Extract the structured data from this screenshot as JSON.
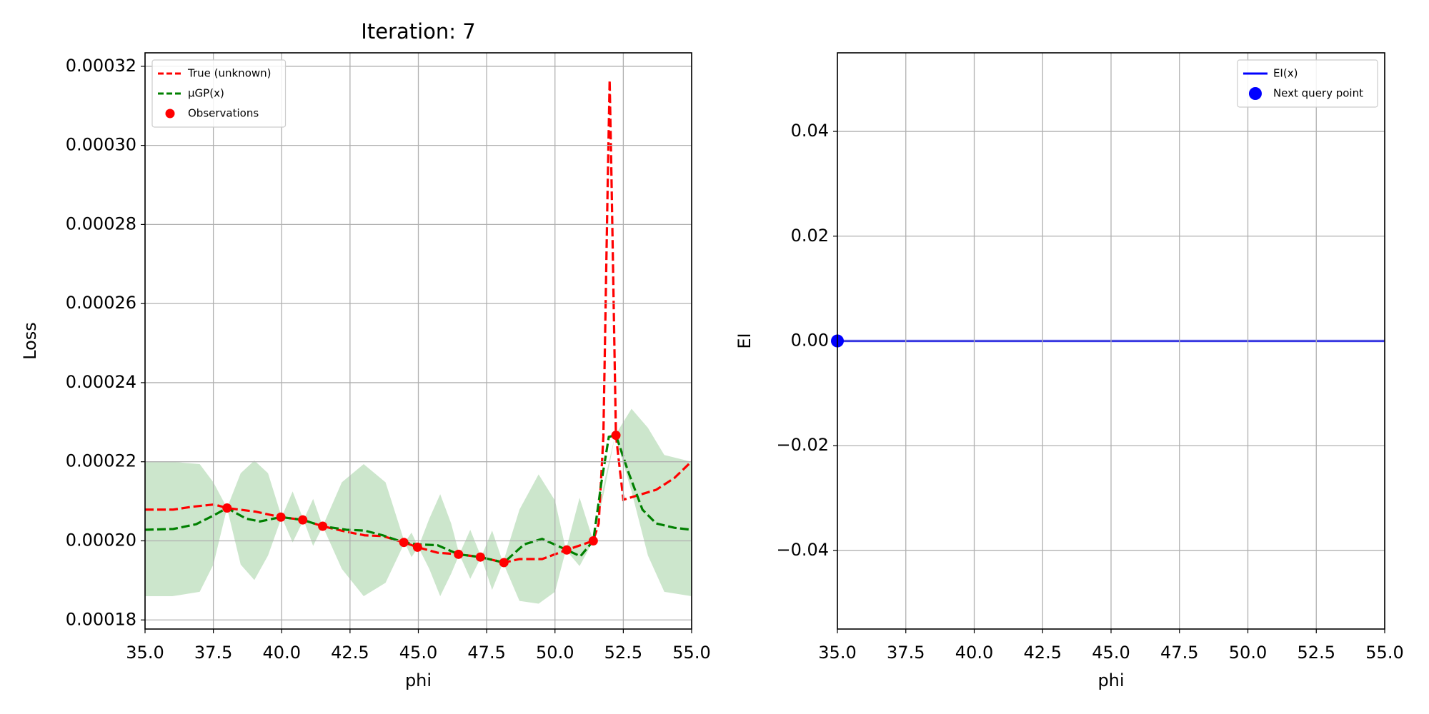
{
  "chart_data": [
    {
      "type": "line",
      "title": "Iteration: 7",
      "xlabel": "phi",
      "ylabel": "Loss",
      "xlim": [
        35,
        55
      ],
      "ylim": [
        0.0001777,
        0.0003234
      ],
      "xticks": [
        {
          "value": 35,
          "label": "35.0"
        },
        37.5,
        {
          "value": 40,
          "label": "40.0"
        },
        42.5,
        {
          "value": 45,
          "label": "45.0"
        },
        47.5,
        {
          "value": 50,
          "label": "50.0"
        },
        52.5,
        {
          "value": 55,
          "label": "55.0"
        }
      ],
      "yticks": [
        0.00018,
        {
          "value": 0.0002,
          "label": "0.00020"
        },
        0.00022,
        0.00024,
        0.00026,
        0.00028,
        {
          "value": 0.0003,
          "label": "0.00030"
        },
        0.00032
      ],
      "grid": true,
      "legend": "upper left",
      "band": {
        "color": "#008000",
        "x": [
          35,
          36,
          37,
          37.5,
          38,
          38.5,
          39,
          39.5,
          40,
          40.4,
          40.8,
          41.15,
          41.5,
          42.2,
          43,
          43.8,
          44.5,
          44.75,
          45,
          45.4,
          45.8,
          46.2,
          46.5,
          46.9,
          47.3,
          47.7,
          48.1,
          48.7,
          49.4,
          50,
          50.4,
          50.9,
          51.4,
          51.8,
          52.2,
          52.8,
          53.4,
          54,
          55
        ],
        "upper": [
          0.00022,
          0.00022,
          0.0002194,
          0.0002148,
          0.0002083,
          0.0002171,
          0.0002203,
          0.0002171,
          0.000206,
          0.0002125,
          0.0002053,
          0.0002106,
          0.0002037,
          0.0002148,
          0.0002194,
          0.0002148,
          0.0001996,
          0.0002021,
          0.0001984,
          0.0002056,
          0.0002118,
          0.0002044,
          0.0001966,
          0.0002028,
          0.0001959,
          0.0002026,
          0.0001945,
          0.0002079,
          0.0002168,
          0.0002102,
          0.0001977,
          0.0002109,
          0.0002,
          0.0002148,
          0.0002267,
          0.0002334,
          0.0002286,
          0.0002217,
          0.00022
        ],
        "lower": [
          0.000186,
          0.000186,
          0.0001871,
          0.000194,
          0.0002083,
          0.000194,
          0.0001901,
          0.0001963,
          0.000206,
          0.0001996,
          0.0002053,
          0.0001987,
          0.0002037,
          0.0001929,
          0.000186,
          0.0001894,
          0.0001996,
          0.0001959,
          0.0001984,
          0.0001929,
          0.000186,
          0.0001917,
          0.0001966,
          0.0001904,
          0.0001959,
          0.0001876,
          0.0001945,
          0.0001848,
          0.0001841,
          0.0001871,
          0.0001977,
          0.0001936,
          0.0002,
          0.0002125,
          0.0002267,
          0.0002125,
          0.0001963,
          0.0001871,
          0.000186
        ]
      },
      "series": [
        {
          "name": "True (unknown)",
          "color": "#ff0000",
          "style": "dashed",
          "x": [
            35,
            36.03,
            36.7,
            37.53,
            38,
            39.03,
            39.97,
            40.77,
            41.5,
            42.37,
            43.03,
            43.7,
            44.47,
            44.97,
            45.7,
            46.47,
            47.27,
            48.13,
            48.7,
            49.53,
            50.43,
            51.4,
            51.6,
            51.77,
            51.93,
            52,
            52.07,
            52.23,
            52.5,
            53.03,
            53.7,
            54.37,
            55
          ],
          "values": [
            0.0002079,
            0.0002079,
            0.0002086,
            0.0002092,
            0.0002083,
            0.0002074,
            0.000206,
            0.0002053,
            0.0002037,
            0.0002023,
            0.0002014,
            0.0002012,
            0.0001996,
            0.0001984,
            0.000197,
            0.0001966,
            0.0001959,
            0.0001945,
            0.0001954,
            0.0001954,
            0.0001977,
            0.0002,
            0.0002044,
            0.0002263,
            0.0002908,
            0.0003165,
            0.0002908,
            0.0002267,
            0.0002104,
            0.0002115,
            0.0002129,
            0.0002159,
            0.0002201
          ]
        },
        {
          "name": "μGP(x)",
          "color": "#008000",
          "style": "dashed",
          "x": [
            35,
            36.03,
            36.87,
            37.53,
            38,
            38.7,
            39.2,
            39.97,
            40.77,
            41.5,
            42.37,
            43.03,
            43.7,
            44.47,
            44.97,
            45.7,
            46.47,
            47.27,
            48.13,
            48.87,
            49.53,
            50.43,
            50.93,
            51.4,
            51.7,
            51.97,
            52.23,
            52.7,
            53.2,
            53.7,
            54.37,
            55
          ],
          "values": [
            0.0002028,
            0.000203,
            0.0002042,
            0.0002065,
            0.0002083,
            0.0002056,
            0.0002049,
            0.000206,
            0.0002053,
            0.0002037,
            0.0002028,
            0.0002026,
            0.0002014,
            0.0001996,
            0.0001991,
            0.0001989,
            0.0001966,
            0.0001959,
            0.0001945,
            0.0001991,
            0.0002005,
            0.0001977,
            0.0001961,
            0.0002,
            0.0002148,
            0.0002263,
            0.0002267,
            0.0002171,
            0.0002079,
            0.0002044,
            0.0002033,
            0.0002028
          ]
        },
        {
          "name": "Observations",
          "color": "#ff0000",
          "style": "markers",
          "x": [
            38,
            39.97,
            40.77,
            41.5,
            44.47,
            44.97,
            46.47,
            47.27,
            48.13,
            50.43,
            51.4,
            52.23
          ],
          "values": [
            0.0002083,
            0.000206,
            0.0002053,
            0.0002037,
            0.0001996,
            0.0001984,
            0.0001966,
            0.0001959,
            0.0001945,
            0.0001977,
            0.0002,
            0.0002267
          ]
        }
      ]
    },
    {
      "type": "line",
      "xlabel": "phi",
      "ylabel": "EI",
      "xlim": [
        35,
        55
      ],
      "ylim": [
        -0.055,
        0.055
      ],
      "xticks": [
        {
          "value": 35,
          "label": "35.0"
        },
        37.5,
        {
          "value": 40,
          "label": "40.0"
        },
        42.5,
        {
          "value": 45,
          "label": "45.0"
        },
        47.5,
        {
          "value": 50,
          "label": "50.0"
        },
        52.5,
        {
          "value": 55,
          "label": "55.0"
        }
      ],
      "yticks": [
        {
          "value": -0.04,
          "label": "−0.04"
        },
        {
          "value": -0.02,
          "label": "−0.02"
        },
        {
          "value": 0,
          "label": "0.00"
        },
        0.02,
        0.04
      ],
      "grid": true,
      "legend": "upper right",
      "series": [
        {
          "name": "EI(x)",
          "color": "#0000ff",
          "style": "solid",
          "x": [
            35,
            55
          ],
          "values": [
            0,
            0
          ]
        },
        {
          "name": "Next query point",
          "color": "#0000ff",
          "style": "markers",
          "x": [
            35
          ],
          "values": [
            0
          ]
        }
      ]
    }
  ]
}
